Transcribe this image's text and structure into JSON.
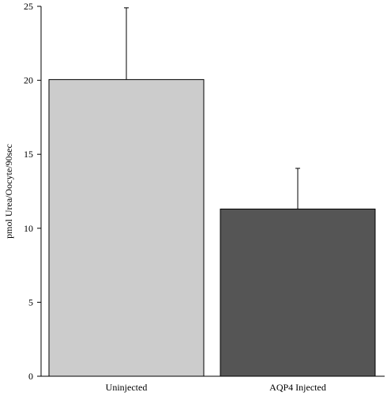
{
  "chart_data": {
    "type": "bar",
    "title": "",
    "xlabel": "",
    "ylabel": "pmol Urea/Oocyte/90sec",
    "categories": [
      "Uninjected",
      "AQP4 Injected"
    ],
    "values": [
      20.05,
      11.3
    ],
    "errors": [
      4.85,
      2.75
    ],
    "ylim": [
      0,
      25
    ],
    "yticks": [
      "0",
      "5",
      "10",
      "15",
      "20",
      "25"
    ],
    "bar_colors": [
      "#cccccc",
      "#555555"
    ],
    "edge_color": "#000000",
    "error_bar_direction": "up",
    "grid": false,
    "legend": "none"
  }
}
